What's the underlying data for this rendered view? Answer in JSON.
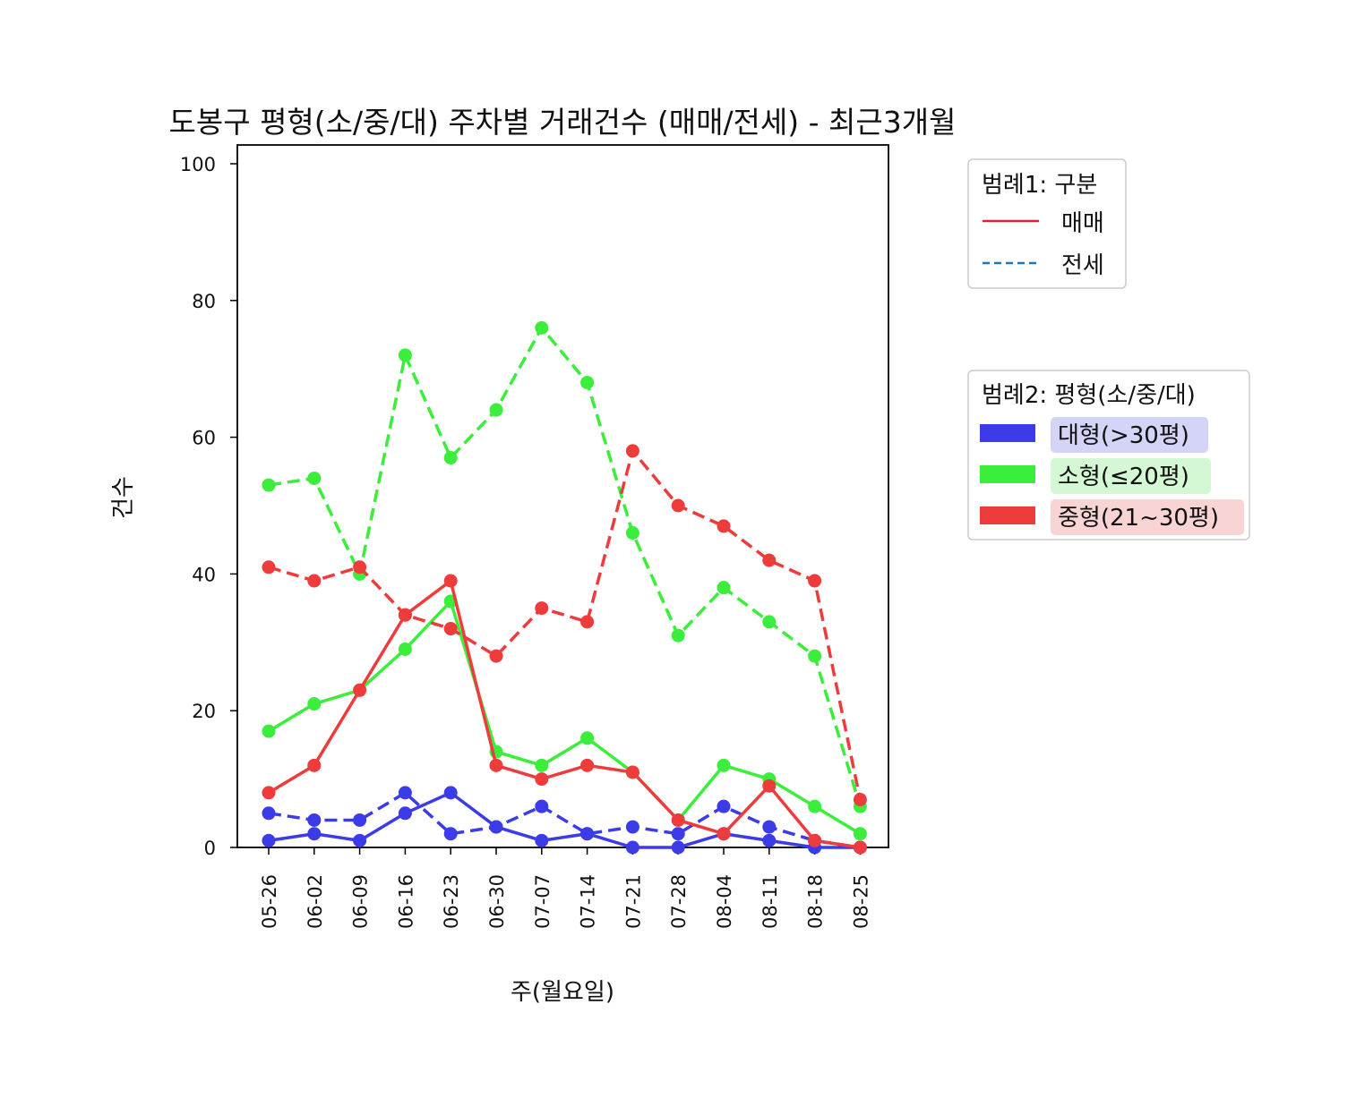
{
  "chart_data": {
    "type": "line",
    "title": "도봉구 평형(소/중/대) 주차별 거래건수 (매매/전세) - 최근3개월",
    "xlabel": "주(월요일)",
    "ylabel": "건수",
    "ylim": [
      0,
      100
    ],
    "yticks": [
      "0",
      "20",
      "40",
      "60",
      "80",
      "100"
    ],
    "categories": [
      "05-26",
      "06-02",
      "06-09",
      "06-16",
      "06-23",
      "06-30",
      "07-07",
      "07-14",
      "07-21",
      "07-28",
      "08-04",
      "08-11",
      "08-18",
      "08-25"
    ],
    "grid": false,
    "series": [
      {
        "name": "대형(>30평) 매매",
        "size": "대형",
        "kind": "매매",
        "color": "#3b3be8",
        "dash": false,
        "values": [
          1,
          2,
          1,
          5,
          8,
          3,
          1,
          2,
          0,
          0,
          2,
          1,
          0,
          0
        ]
      },
      {
        "name": "대형(>30평) 전세",
        "size": "대형",
        "kind": "전세",
        "color": "#3b3be8",
        "dash": true,
        "values": [
          5,
          4,
          4,
          8,
          2,
          3,
          6,
          2,
          3,
          2,
          6,
          3,
          1,
          0
        ]
      },
      {
        "name": "소형(≤20평) 매매",
        "size": "소형",
        "kind": "매매",
        "color": "#3bee3b",
        "dash": false,
        "values": [
          17,
          21,
          23,
          29,
          36,
          14,
          12,
          16,
          11,
          4,
          12,
          10,
          6,
          2
        ]
      },
      {
        "name": "소형(≤20평) 전세",
        "size": "소형",
        "kind": "전세",
        "color": "#3bee3b",
        "dash": true,
        "values": [
          53,
          54,
          40,
          72,
          57,
          64,
          76,
          68,
          46,
          31,
          38,
          33,
          28,
          6
        ]
      },
      {
        "name": "중형(21~30평) 매매",
        "size": "중형",
        "kind": "매매",
        "color": "#ee3b3b",
        "dash": false,
        "values": [
          8,
          12,
          23,
          34,
          39,
          12,
          10,
          12,
          11,
          4,
          2,
          9,
          1,
          0
        ]
      },
      {
        "name": "중형(21~30평) 전세",
        "size": "중형",
        "kind": "전세",
        "color": "#ee3b3b",
        "dash": true,
        "values": [
          41,
          39,
          41,
          34,
          32,
          28,
          35,
          33,
          58,
          50,
          47,
          42,
          39,
          7
        ]
      }
    ],
    "legend1": {
      "title": "범례1: 구분",
      "items": [
        {
          "label": "매매",
          "color": "#d62728",
          "dash": false
        },
        {
          "label": "전세",
          "color": "#1f77b4",
          "dash": true
        }
      ],
      "placement": "right-top"
    },
    "legend2": {
      "title": "범례2: 평형(소/중/대)",
      "items": [
        {
          "label": "대형(>30평)",
          "color": "#3b3be8",
          "bg": "#d4d4f8"
        },
        {
          "label": "소형(≤20평)",
          "color": "#3bee3b",
          "bg": "#d4f8d4"
        },
        {
          "label": "중형(21~30평)",
          "color": "#ee3b3b",
          "bg": "#f8d4d4"
        }
      ],
      "placement": "right-middle"
    }
  }
}
